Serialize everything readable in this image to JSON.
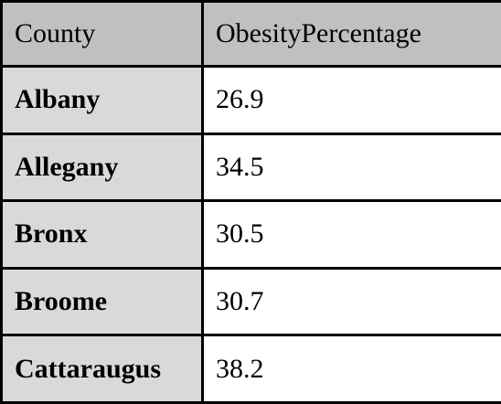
{
  "table": {
    "headers": [
      "County",
      "ObesityPercentage"
    ],
    "rows": [
      [
        "Albany",
        "26.9"
      ],
      [
        "Allegany",
        "34.5"
      ],
      [
        "Bronx",
        "30.5"
      ],
      [
        "Broome",
        "30.7"
      ],
      [
        "Cattaraugus",
        "38.2"
      ]
    ]
  }
}
